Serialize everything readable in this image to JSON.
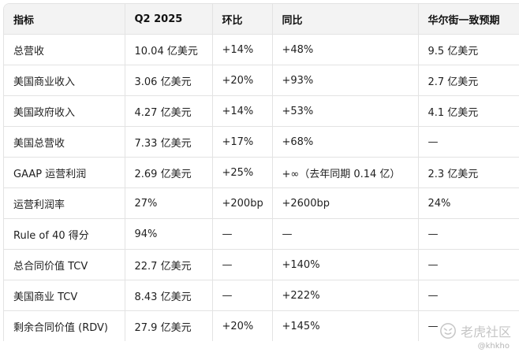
{
  "table": {
    "headers": [
      "指标",
      "Q2 2025",
      "环比",
      "同比",
      "华尔街一致预期"
    ],
    "rows": [
      [
        "总营收",
        "10.04 亿美元",
        "+14%",
        "+48%",
        "9.5 亿美元"
      ],
      [
        "美国商业收入",
        "3.06 亿美元",
        "+20%",
        "+93%",
        "2.7 亿美元"
      ],
      [
        "美国政府收入",
        "4.27 亿美元",
        "+14%",
        "+53%",
        "4.1 亿美元"
      ],
      [
        "美国总营收",
        "7.33 亿美元",
        "+17%",
        "+68%",
        "—"
      ],
      [
        "GAAP 运营利润",
        "2.69 亿美元",
        "+25%",
        "+∞（去年同期 0.14 亿）",
        "2.3 亿美元"
      ],
      [
        "运营利润率",
        "27%",
        "+200bp",
        "+2600bp",
        "24%"
      ],
      [
        "Rule of 40 得分",
        "94%",
        "—",
        "—",
        "—"
      ],
      [
        "总合同价值 TCV",
        "22.7 亿美元",
        "—",
        "+140%",
        "—"
      ],
      [
        "美国商业 TCV",
        "8.43 亿美元",
        "—",
        "+222%",
        "—"
      ],
      [
        "剩余合同价值 (RDV)",
        "27.9 亿美元",
        "+20%",
        "+145%",
        "—"
      ]
    ]
  },
  "watermark": {
    "brand": "老虎社区",
    "handle": "@khkho",
    "icon": "tiger-logo-icon"
  }
}
